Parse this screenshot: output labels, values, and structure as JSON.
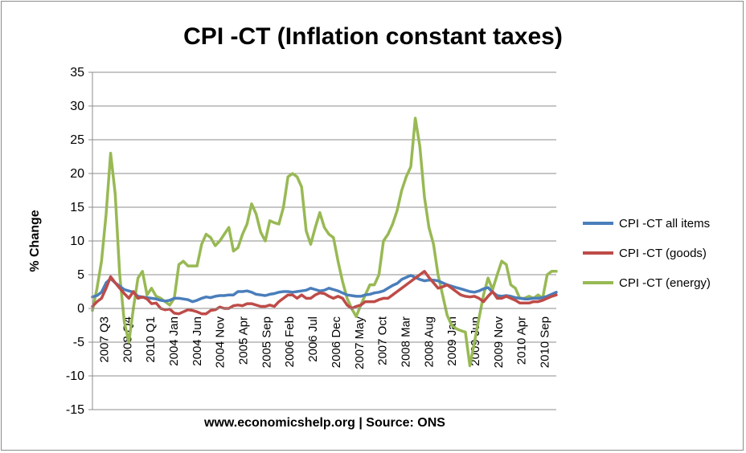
{
  "chart_data": {
    "type": "line",
    "title": "CPI -CT (Inflation constant taxes)",
    "xlabel": "www.economicshelp.org | Source: ONS",
    "ylabel": "% Change",
    "ylim": [
      -15,
      35
    ],
    "yticks": [
      35,
      30,
      25,
      20,
      15,
      10,
      5,
      0,
      -5,
      -10,
      -15
    ],
    "xticks": [
      "2007 Q3",
      "2008 Q4",
      "2010 Q1",
      "2004 Jan",
      "2004 Jun",
      "2004 Nov",
      "2005 Apr",
      "2005 Sep",
      "2006 Feb",
      "2006 Jul",
      "2006 Dec",
      "2007 May",
      "2007 Oct",
      "2008 Mar",
      "2008 Aug",
      "2009 Jan",
      "2009 Jun",
      "2009 Nov",
      "2010 Apr",
      "2010 Sep"
    ],
    "grid": true,
    "legend_position": "right",
    "series": [
      {
        "name": "CPI -CT all items",
        "color": "#4a7ebb",
        "values": [
          1.7,
          1.9,
          2.4,
          3.8,
          4.4,
          3.8,
          3.3,
          2.8,
          2.6,
          2.4,
          1.8,
          1.7,
          1.6,
          1.5,
          1.4,
          1.2,
          1.1,
          1.2,
          1.5,
          1.5,
          1.4,
          1.3,
          1.0,
          1.2,
          1.5,
          1.7,
          1.6,
          1.8,
          1.9,
          1.9,
          2.0,
          2.0,
          2.5,
          2.5,
          2.6,
          2.4,
          2.1,
          2.0,
          1.9,
          2.1,
          2.2,
          2.4,
          2.5,
          2.5,
          2.4,
          2.5,
          2.6,
          2.7,
          3.0,
          2.8,
          2.6,
          2.7,
          3.0,
          2.8,
          2.6,
          2.3,
          2.0,
          1.9,
          1.8,
          1.8,
          2.0,
          2.1,
          2.3,
          2.4,
          2.6,
          3.0,
          3.4,
          3.7,
          4.3,
          4.6,
          4.9,
          4.6,
          4.3,
          4.1,
          4.2,
          4.2,
          4.1,
          3.8,
          3.5,
          3.3,
          3.1,
          2.9,
          2.7,
          2.5,
          2.4,
          2.6,
          2.9,
          3.1,
          2.4,
          1.9,
          1.8,
          1.9,
          1.8,
          1.6,
          1.5,
          1.4,
          1.4,
          1.5,
          1.5,
          1.6,
          1.8,
          2.1,
          2.4
        ]
      },
      {
        "name": "CPI -CT (goods)",
        "color": "#be4b48",
        "values": [
          0.3,
          1.0,
          1.5,
          3.0,
          4.7,
          3.8,
          3.0,
          2.2,
          1.5,
          2.5,
          1.5,
          1.7,
          1.4,
          0.7,
          0.8,
          0.0,
          -0.2,
          -0.1,
          -0.7,
          -0.8,
          -0.5,
          -0.2,
          -0.3,
          -0.5,
          -0.8,
          -0.8,
          -0.3,
          -0.2,
          0.2,
          0.0,
          0.0,
          0.4,
          0.5,
          0.4,
          0.7,
          0.7,
          0.5,
          0.3,
          0.3,
          0.5,
          0.3,
          1.0,
          1.5,
          2.0,
          2.0,
          1.5,
          2.0,
          1.5,
          1.5,
          2.0,
          2.3,
          2.2,
          1.8,
          1.5,
          1.8,
          1.5,
          0.5,
          0.0,
          0.3,
          0.5,
          1.0,
          1.0,
          1.0,
          1.3,
          1.5,
          1.5,
          2.0,
          2.5,
          3.0,
          3.5,
          4.0,
          4.5,
          5.0,
          5.5,
          4.6,
          3.8,
          3.0,
          3.2,
          3.5,
          3.0,
          2.5,
          2.0,
          1.8,
          1.7,
          1.8,
          1.5,
          1.0,
          1.8,
          2.5,
          1.5,
          1.5,
          1.8,
          1.5,
          1.2,
          0.8,
          0.8,
          0.8,
          1.0,
          1.0,
          1.2,
          1.5,
          1.8,
          2.0
        ]
      },
      {
        "name": "CPI -CT (energy)",
        "color": "#98b954",
        "values": [
          -0.3,
          3.0,
          7.0,
          14.0,
          23.0,
          17.0,
          5.0,
          -2.0,
          -5.0,
          0.0,
          4.5,
          5.5,
          2.0,
          3.0,
          1.8,
          1.5,
          1.0,
          0.5,
          1.5,
          6.5,
          7.0,
          6.3,
          6.3,
          6.3,
          9.5,
          11.0,
          10.5,
          9.3,
          10.0,
          11.0,
          12.0,
          8.5,
          9.0,
          11.0,
          12.5,
          15.5,
          14.0,
          11.3,
          10.0,
          13.0,
          12.7,
          12.5,
          15.0,
          19.5,
          20.0,
          19.5,
          18.0,
          11.5,
          9.5,
          12.0,
          14.2,
          12.0,
          11.0,
          10.5,
          7.0,
          4.0,
          1.5,
          0.0,
          -1.2,
          0.5,
          2.0,
          3.5,
          3.5,
          5.0,
          10.0,
          11.0,
          12.5,
          14.5,
          17.5,
          19.5,
          21.0,
          28.2,
          24.0,
          16.5,
          12.0,
          9.5,
          5.0,
          2.0,
          -1.0,
          -2.5,
          -3.0,
          -3.3,
          -3.5,
          -8.5,
          -5.0,
          -1.5,
          2.0,
          4.5,
          2.8,
          5.0,
          7.0,
          6.5,
          3.5,
          3.0,
          1.5,
          1.5,
          1.8,
          1.5,
          2.0,
          1.5,
          5.0,
          5.5,
          5.5
        ]
      }
    ]
  }
}
